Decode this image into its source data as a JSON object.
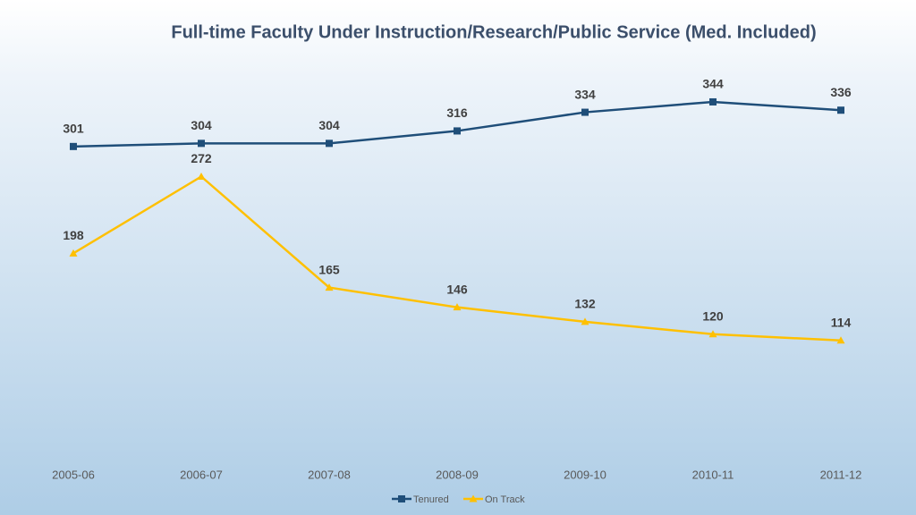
{
  "chart_data": {
    "type": "line",
    "title": "Full-time Faculty Under Instruction/Research/Public Service (Med. Included)",
    "categories": [
      "2005-06",
      "2006-07",
      "2007-08",
      "2008-09",
      "2009-10",
      "2010-11",
      "2011-12"
    ],
    "series": [
      {
        "name": "Tenured",
        "color": "#1f4e79",
        "marker": "square",
        "values": [
          301,
          304,
          304,
          316,
          334,
          344,
          336
        ]
      },
      {
        "name": "On Track",
        "color": "#ffc000",
        "marker": "triangle",
        "values": [
          198,
          272,
          165,
          146,
          132,
          120,
          114
        ]
      }
    ],
    "ylim": [
      0,
      400
    ],
    "grid": false,
    "legend": "bottom"
  }
}
